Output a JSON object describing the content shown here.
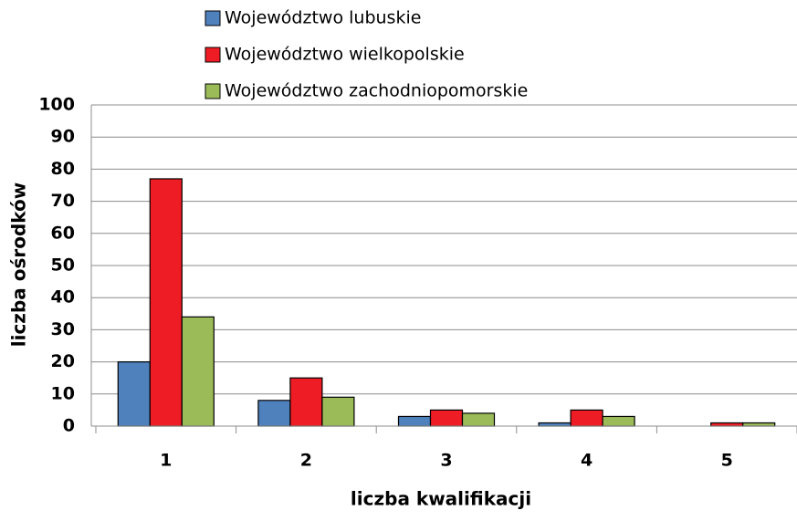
{
  "chart_data": {
    "type": "bar",
    "x_label": "liczba kwalifikacji",
    "y_label": "liczba ośrodków",
    "categories": [
      "1",
      "2",
      "3",
      "4",
      "5"
    ],
    "series": [
      {
        "name": "Województwo lubuskie",
        "color": "#4f81bd",
        "values": [
          20,
          8,
          3,
          1,
          0
        ]
      },
      {
        "name": "Województwo wielkopolskie",
        "color": "#ee1c25",
        "values": [
          77,
          15,
          5,
          5,
          1
        ]
      },
      {
        "name": "Województwo zachodniopomorskie",
        "color": "#9bbb59",
        "values": [
          34,
          9,
          4,
          3,
          1
        ]
      }
    ],
    "ylim": [
      0,
      100
    ],
    "yticks": [
      0,
      10,
      20,
      30,
      40,
      50,
      60,
      70,
      80,
      90,
      100
    ],
    "grid": true
  }
}
